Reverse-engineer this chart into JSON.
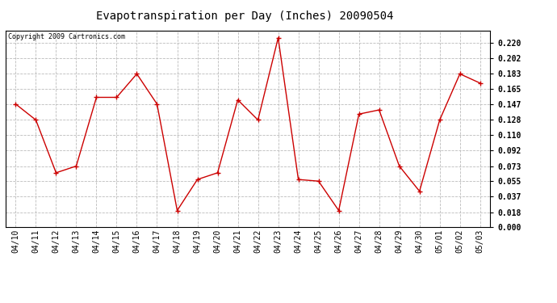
{
  "title": "Evapotranspiration per Day (Inches) 20090504",
  "copyright": "Copyright 2009 Cartronics.com",
  "x_labels": [
    "04/10",
    "04/11",
    "04/12",
    "04/13",
    "04/14",
    "04/15",
    "04/16",
    "04/17",
    "04/18",
    "04/19",
    "04/20",
    "04/21",
    "04/22",
    "04/23",
    "04/24",
    "04/25",
    "04/26",
    "04/27",
    "04/28",
    "04/29",
    "04/30",
    "05/01",
    "05/02",
    "05/03"
  ],
  "y_values": [
    0.147,
    0.128,
    0.065,
    0.073,
    0.155,
    0.155,
    0.183,
    0.147,
    0.02,
    0.057,
    0.065,
    0.152,
    0.128,
    0.226,
    0.057,
    0.055,
    0.02,
    0.135,
    0.14,
    0.073,
    0.043,
    0.128,
    0.183,
    0.172
  ],
  "line_color": "#cc0000",
  "marker": "+",
  "marker_size": 4,
  "marker_lw": 1.0,
  "line_width": 1.0,
  "ylim": [
    0.0,
    0.235
  ],
  "yticks": [
    0.0,
    0.018,
    0.037,
    0.055,
    0.073,
    0.092,
    0.11,
    0.128,
    0.147,
    0.165,
    0.183,
    0.202,
    0.22
  ],
  "bg_color": "#ffffff",
  "grid_color": "#bbbbbb",
  "title_fontsize": 10,
  "copyright_fontsize": 6,
  "tick_fontsize": 7,
  "font_family": "monospace"
}
